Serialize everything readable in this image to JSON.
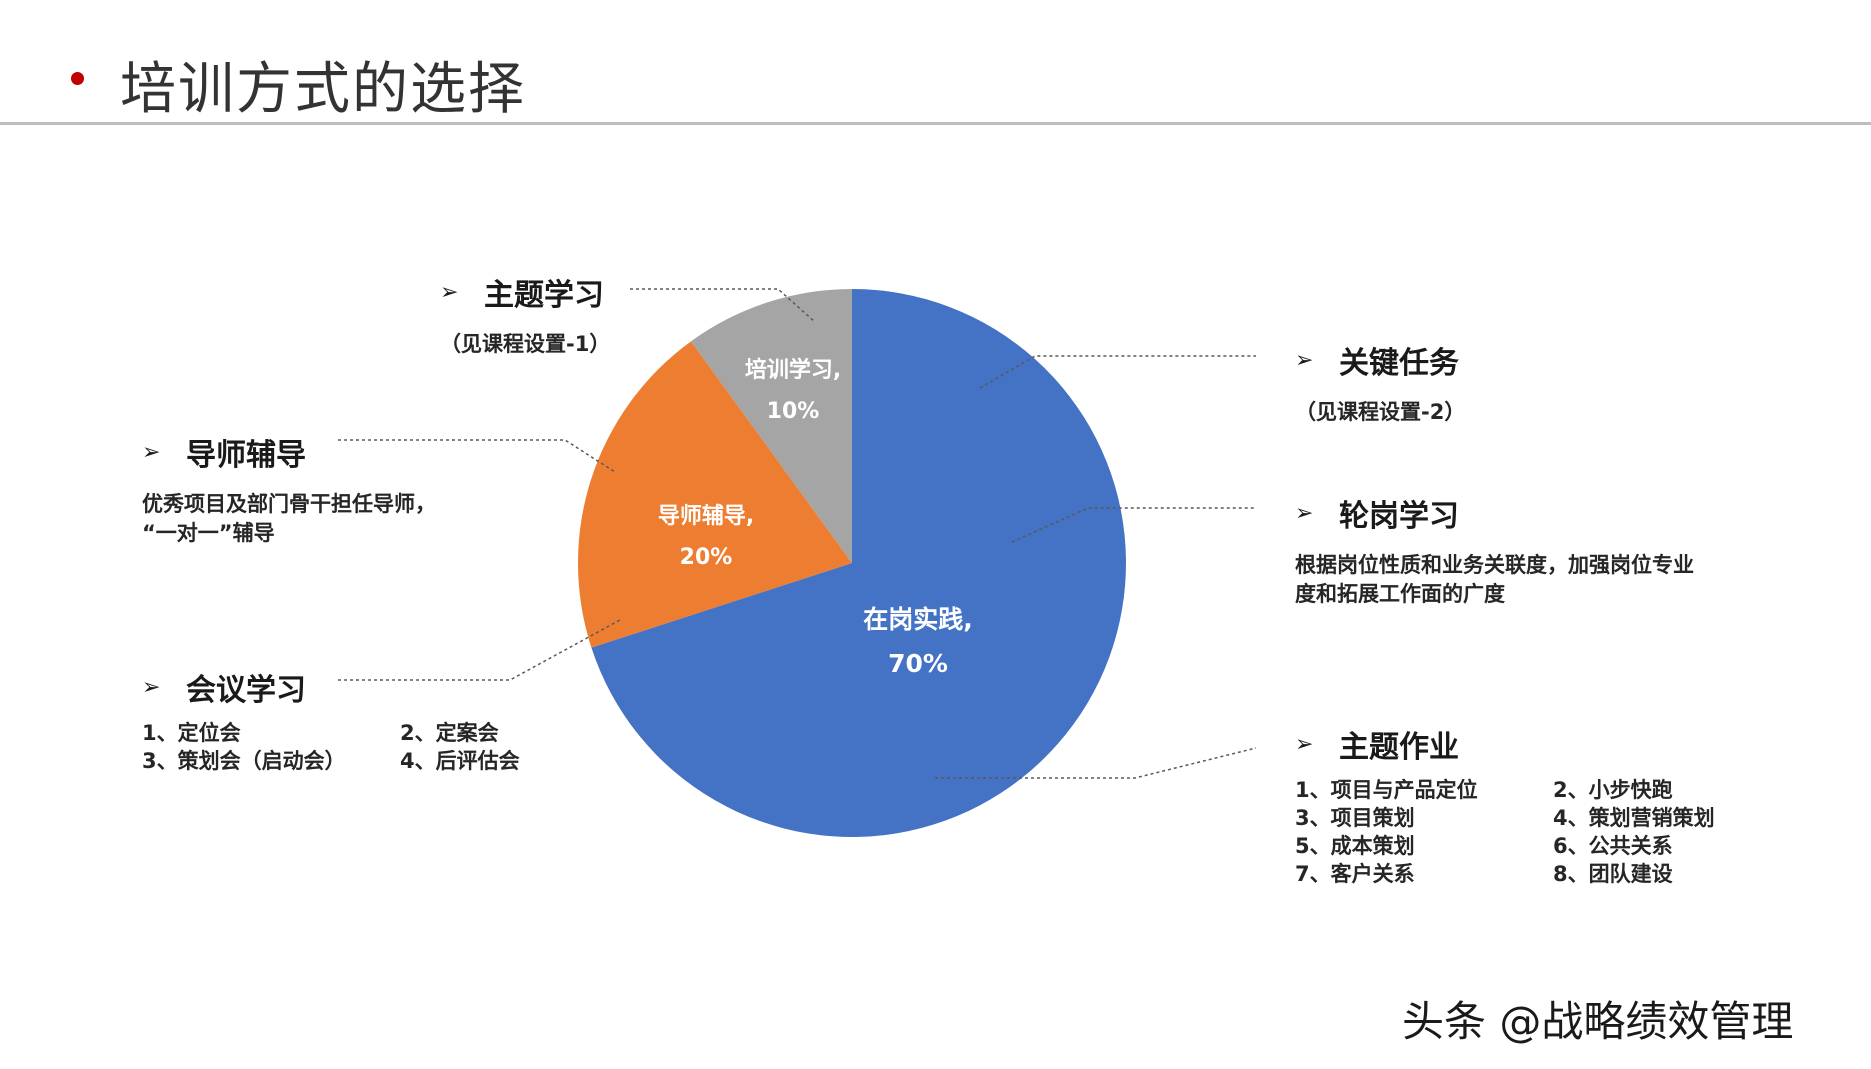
{
  "title": "培训方式的选择",
  "chart_data": {
    "type": "pie",
    "slices": [
      {
        "label": "在岗实践,",
        "value": 70,
        "value_label": "70%",
        "color": "#4472C4"
      },
      {
        "label": "导师辅导,",
        "value": 20,
        "value_label": "20%",
        "color": "#ED7D31"
      },
      {
        "label": "培训学习,",
        "value": 10,
        "value_label": "10%",
        "color": "#A5A5A5"
      }
    ]
  },
  "annotations": {
    "topic_study": {
      "icon": "arrow-bullet-icon",
      "label": "主题学习",
      "sub": "（见课程设置-1）"
    },
    "mentor": {
      "icon": "arrow-bullet-icon",
      "label": "导师辅导",
      "lines": [
        "优秀项目及部门骨干担任导师，",
        "“一对一”辅导"
      ]
    },
    "meeting": {
      "icon": "arrow-bullet-icon",
      "label": "会议学习",
      "items": [
        "1、定位会",
        "2、定案会",
        "3、策划会（启动会）",
        "4、后评估会"
      ]
    },
    "key_task": {
      "icon": "arrow-bullet-icon",
      "label": "关键任务",
      "sub": "（见课程设置-2）"
    },
    "rotation": {
      "icon": "arrow-bullet-icon",
      "label": "轮岗学习",
      "lines": [
        "根据岗位性质和业务关联度，加强岗位专业",
        "度和拓展工作面的广度"
      ]
    },
    "topic_work": {
      "icon": "arrow-bullet-icon",
      "label": "主题作业",
      "items": [
        "1、项目与产品定位",
        "2、小步快跑",
        "3、项目策划",
        "4、策划营销策划",
        "5、成本策划",
        "6、公共关系",
        "7、客户关系",
        "8、团队建设"
      ]
    }
  },
  "watermark": "头条 @战略绩效管理"
}
